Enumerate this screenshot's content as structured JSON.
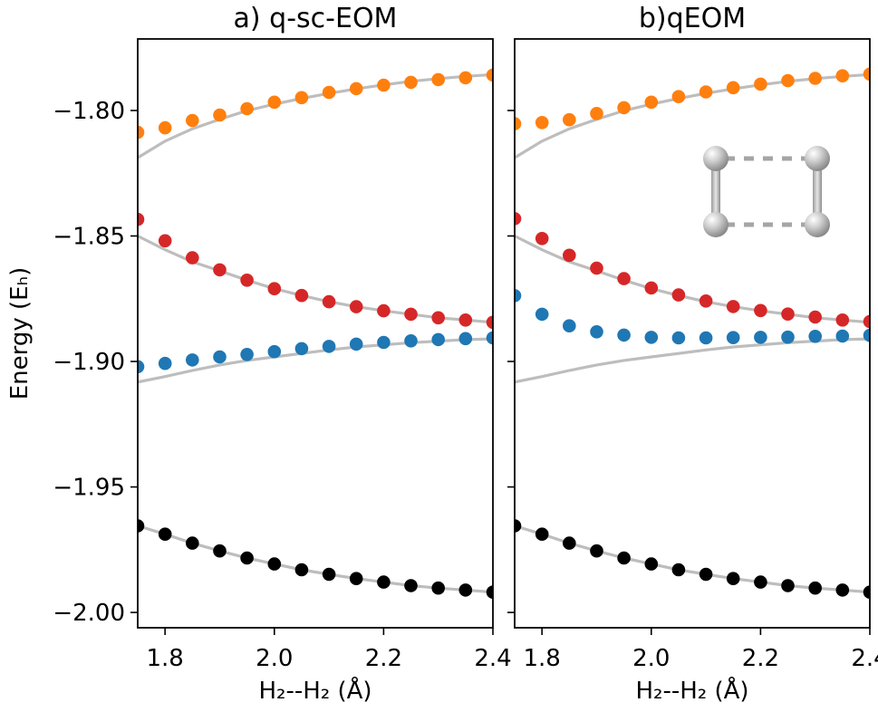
{
  "chart_data": [
    {
      "type": "scatter",
      "title": "a) q-sc-EOM",
      "xlabel": "H₂--H₂ (Å)",
      "ylabel": "Energy (Eₕ)",
      "xlim": [
        1.75,
        2.4
      ],
      "ylim": [
        -2.0061,
        -1.7715
      ],
      "xticks": [
        1.8,
        2.0,
        2.2,
        2.4
      ],
      "xtick_labels": [
        "1.8",
        "2.0",
        "2.2",
        "2.4"
      ],
      "yticks": [
        -1.8,
        -1.85,
        -1.9,
        -1.95,
        -2.0
      ],
      "ytick_labels": [
        "−1.80",
        "−1.85",
        "−1.90",
        "−1.95",
        "−2.00"
      ],
      "grid": false,
      "x": [
        1.75,
        1.8,
        1.85,
        1.9,
        1.95,
        2.0,
        2.05,
        2.1,
        2.15,
        2.2,
        2.25,
        2.3,
        2.35,
        2.4
      ],
      "series": [
        {
          "color": "#ff7f0e",
          "values": [
            -1.8087,
            -1.8069,
            -1.804,
            -1.8018,
            -1.7993,
            -1.7967,
            -1.7949,
            -1.7928,
            -1.7913,
            -1.7899,
            -1.7888,
            -1.7877,
            -1.787,
            -1.7859
          ]
        },
        {
          "color": "#d62728",
          "values": [
            -1.8434,
            -1.8519,
            -1.8587,
            -1.8635,
            -1.8676,
            -1.871,
            -1.8737,
            -1.8762,
            -1.8782,
            -1.8798,
            -1.8812,
            -1.8826,
            -1.8835,
            -1.8844
          ]
        },
        {
          "color": "#1f77b4",
          "values": [
            -1.9021,
            -1.9008,
            -1.8994,
            -1.8982,
            -1.8972,
            -1.8961,
            -1.8949,
            -1.894,
            -1.8931,
            -1.8924,
            -1.8918,
            -1.8913,
            -1.8909,
            -1.8906
          ]
        },
        {
          "color": "#000000",
          "values": [
            -1.9655,
            -1.9688,
            -1.9724,
            -1.9755,
            -1.9783,
            -1.9807,
            -1.983,
            -1.9848,
            -1.9865,
            -1.9879,
            -1.9893,
            -1.9903,
            -1.9911,
            -1.9919
          ]
        }
      ],
      "reference_curves": {
        "color": "#bdbdbd",
        "curves": [
          [
            -1.8188,
            -1.8122,
            -1.8073,
            -1.8035,
            -1.8001,
            -1.7975,
            -1.7952,
            -1.7932,
            -1.7914,
            -1.7898,
            -1.7884,
            -1.7873,
            -1.7864,
            -1.7857
          ],
          [
            -1.85,
            -1.8555,
            -1.8603,
            -1.8639,
            -1.8676,
            -1.871,
            -1.8737,
            -1.8762,
            -1.8782,
            -1.8798,
            -1.8812,
            -1.8826,
            -1.8835,
            -1.8844
          ],
          [
            -1.9082,
            -1.906,
            -1.9036,
            -1.9014,
            -1.8996,
            -1.8982,
            -1.8968,
            -1.8954,
            -1.8942,
            -1.8934,
            -1.8925,
            -1.8919,
            -1.8913,
            -1.891
          ],
          [
            -1.9655,
            -1.9688,
            -1.9724,
            -1.9755,
            -1.9783,
            -1.9807,
            -1.983,
            -1.9848,
            -1.9865,
            -1.9879,
            -1.9893,
            -1.9903,
            -1.9911,
            -1.9919
          ]
        ]
      }
    },
    {
      "type": "scatter",
      "title": "b)qEOM",
      "xlabel": "H₂--H₂ (Å)",
      "xlim": [
        1.75,
        2.4
      ],
      "ylim": [
        -2.0061,
        -1.7715
      ],
      "xticks": [
        1.8,
        2.0,
        2.2,
        2.4
      ],
      "xtick_labels": [
        "1.8",
        "2.0",
        "2.2",
        "2.4"
      ],
      "yticks": [
        -1.8,
        -1.85,
        -1.9,
        -1.95,
        -2.0
      ],
      "grid": false,
      "inset": "H4 rectangular molecule (two H2 units, dashed intermolecular bonds)",
      "x": [
        1.75,
        1.8,
        1.85,
        1.9,
        1.95,
        2.0,
        2.05,
        2.1,
        2.15,
        2.2,
        2.25,
        2.3,
        2.35,
        2.4
      ],
      "series": [
        {
          "color": "#ff7f0e",
          "values": [
            -1.8053,
            -1.8048,
            -1.8037,
            -1.8012,
            -1.7989,
            -1.7967,
            -1.7945,
            -1.7926,
            -1.7909,
            -1.7895,
            -1.7881,
            -1.7872,
            -1.7862,
            -1.7855
          ]
        },
        {
          "color": "#d62728",
          "values": [
            -1.8431,
            -1.851,
            -1.8577,
            -1.8628,
            -1.867,
            -1.8707,
            -1.8735,
            -1.8759,
            -1.8781,
            -1.8797,
            -1.8811,
            -1.8823,
            -1.8835,
            -1.8841
          ]
        },
        {
          "color": "#1f77b4",
          "values": [
            -1.8738,
            -1.8812,
            -1.8858,
            -1.8882,
            -1.8895,
            -1.8904,
            -1.8906,
            -1.8906,
            -1.8905,
            -1.8904,
            -1.8903,
            -1.89,
            -1.8899,
            -1.8896
          ]
        },
        {
          "color": "#000000",
          "values": [
            -1.9655,
            -1.9688,
            -1.9724,
            -1.9755,
            -1.9783,
            -1.9807,
            -1.983,
            -1.9848,
            -1.9865,
            -1.9879,
            -1.9893,
            -1.9903,
            -1.9911,
            -1.9919
          ]
        }
      ],
      "reference_curves": {
        "color": "#bdbdbd",
        "curves": [
          [
            -1.8188,
            -1.8122,
            -1.8073,
            -1.8035,
            -1.8001,
            -1.7975,
            -1.7952,
            -1.7932,
            -1.7914,
            -1.7898,
            -1.7884,
            -1.7873,
            -1.7864,
            -1.7857
          ],
          [
            -1.85,
            -1.8555,
            -1.8603,
            -1.8639,
            -1.8676,
            -1.871,
            -1.8737,
            -1.8762,
            -1.8782,
            -1.8798,
            -1.8812,
            -1.8826,
            -1.8835,
            -1.8844
          ],
          [
            -1.9082,
            -1.906,
            -1.9036,
            -1.9014,
            -1.8996,
            -1.8982,
            -1.8968,
            -1.8954,
            -1.8942,
            -1.8934,
            -1.8925,
            -1.8919,
            -1.8913,
            -1.891
          ],
          [
            -1.9655,
            -1.9688,
            -1.9724,
            -1.9755,
            -1.9783,
            -1.9807,
            -1.983,
            -1.9848,
            -1.9865,
            -1.9879,
            -1.9893,
            -1.9903,
            -1.9911,
            -1.9919
          ]
        ]
      }
    }
  ]
}
